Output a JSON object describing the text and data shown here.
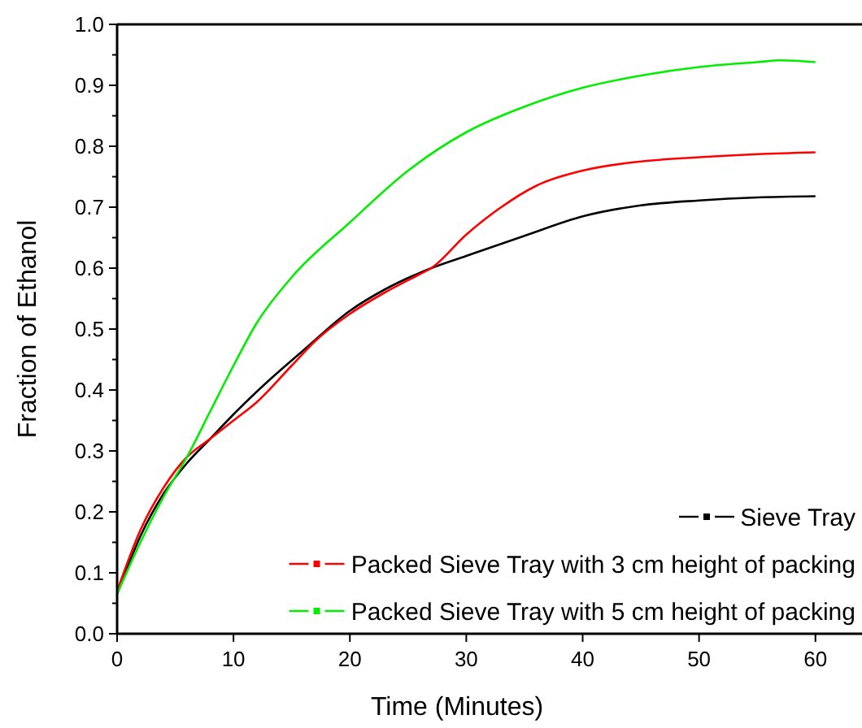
{
  "chart_data": {
    "type": "line",
    "xlabel": "Time (Minutes)",
    "ylabel": "Fraction of Ethanol",
    "xlim": [
      0,
      64
    ],
    "ylim": [
      0,
      1
    ],
    "xticks": [
      0,
      10,
      20,
      30,
      40,
      50,
      60
    ],
    "yticks": [
      {
        "value": 0,
        "label": "0.0"
      },
      {
        "value": 0.05,
        "label": null
      },
      0.1,
      {
        "value": 0.15,
        "label": null
      },
      0.2,
      {
        "value": 0.25,
        "label": null
      },
      0.3,
      {
        "value": 0.35,
        "label": null
      },
      0.4,
      {
        "value": 0.45,
        "label": null
      },
      0.5,
      {
        "value": 0.55,
        "label": null
      },
      0.6,
      {
        "value": 0.65,
        "label": null
      },
      0.7,
      {
        "value": 0.75,
        "label": null
      },
      0.8,
      {
        "value": 0.85,
        "label": null
      },
      0.9,
      {
        "value": 0.95,
        "label": null
      },
      {
        "value": 1,
        "label": "1.0"
      }
    ],
    "legend": "bottom right",
    "grid": false,
    "series": [
      {
        "name": "Sieve Tray",
        "color": "#000000",
        "x": [
          0,
          2,
          4,
          6,
          8,
          10,
          13,
          16,
          20,
          23,
          27,
          30,
          35,
          40,
          45,
          50,
          55,
          60
        ],
        "values": [
          0.065,
          0.16,
          0.23,
          0.28,
          0.32,
          0.36,
          0.415,
          0.465,
          0.53,
          0.565,
          0.6,
          0.62,
          0.653,
          0.685,
          0.703,
          0.711,
          0.716,
          0.718
        ]
      },
      {
        "name": "Packed Sieve Tray with 3 cm height of packing",
        "color": "#ff0000",
        "x": [
          0,
          2,
          4,
          6,
          8,
          10,
          12,
          15,
          17,
          20,
          23,
          26,
          27,
          30,
          33,
          36,
          40,
          45,
          50,
          55,
          60
        ],
        "values": [
          0.07,
          0.17,
          0.24,
          0.29,
          0.32,
          0.35,
          0.38,
          0.44,
          0.48,
          0.525,
          0.56,
          0.59,
          0.6,
          0.655,
          0.7,
          0.735,
          0.76,
          0.775,
          0.782,
          0.787,
          0.79
        ]
      },
      {
        "name": "Packed Sieve Tray with 5 cm height of packing",
        "color": "#00ee00",
        "x": [
          0,
          2,
          4,
          6,
          8,
          10,
          12,
          15,
          20,
          25,
          30,
          35,
          40,
          45,
          50,
          55,
          57,
          60
        ],
        "values": [
          0.065,
          0.15,
          0.225,
          0.29,
          0.365,
          0.44,
          0.51,
          0.585,
          0.675,
          0.76,
          0.823,
          0.865,
          0.896,
          0.916,
          0.93,
          0.938,
          0.941,
          0.938
        ]
      }
    ]
  }
}
